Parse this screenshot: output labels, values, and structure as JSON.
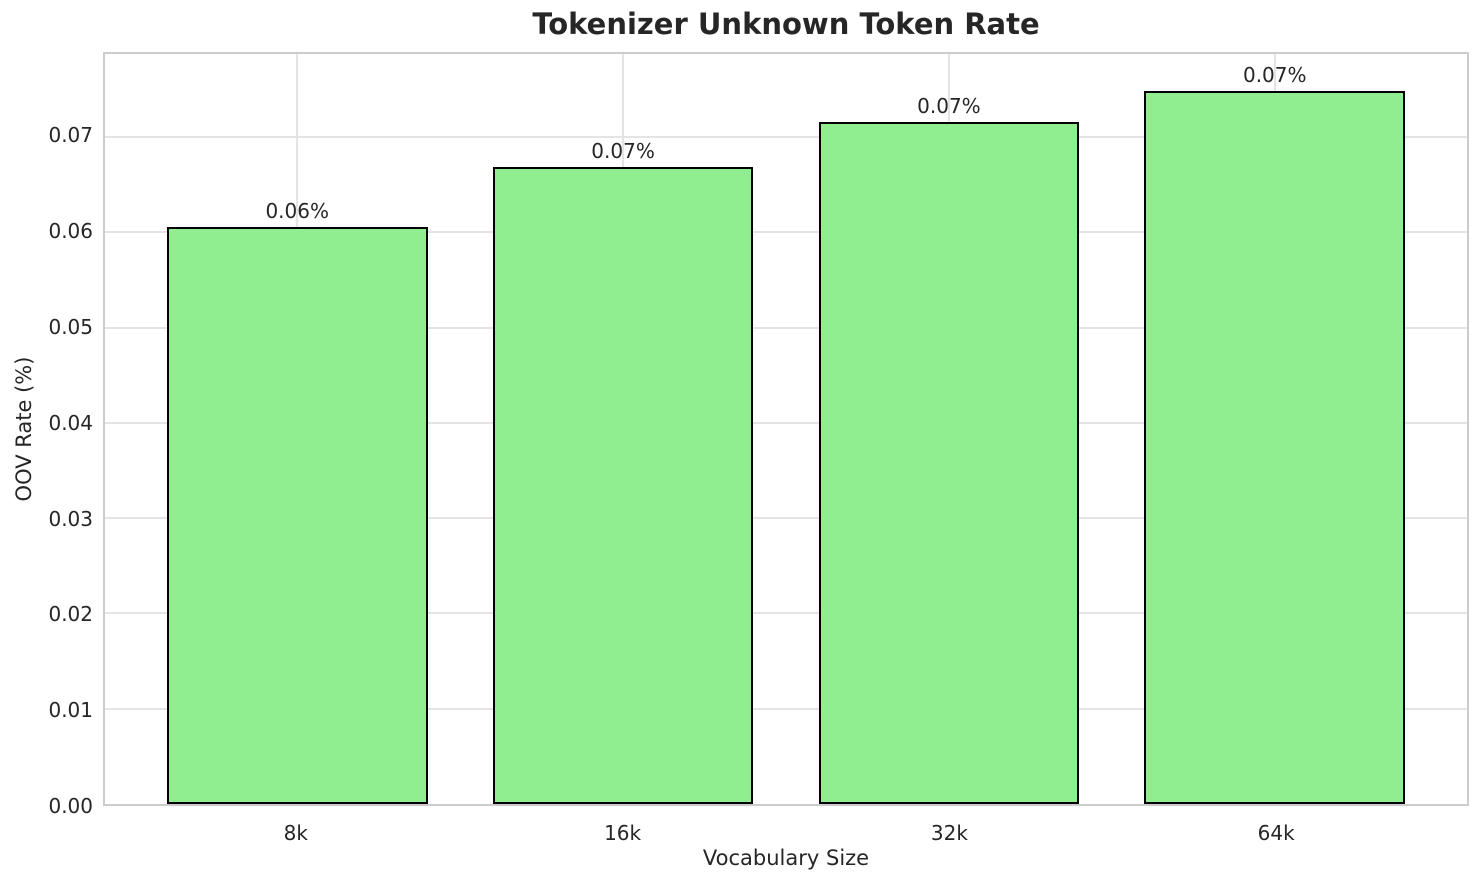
{
  "chart_data": {
    "type": "bar",
    "title": "Tokenizer Unknown Token Rate",
    "xlabel": "Vocabulary Size",
    "ylabel": "OOV Rate (%)",
    "categories": [
      "8k",
      "16k",
      "32k",
      "64k"
    ],
    "values": [
      0.0605,
      0.0668,
      0.0716,
      0.0748
    ],
    "bar_labels": [
      "0.06%",
      "0.07%",
      "0.07%",
      "0.07%"
    ],
    "ylim": [
      0,
      0.0787
    ],
    "yticks": [
      {
        "value": 0.0,
        "label": "0.00"
      },
      {
        "value": 0.01,
        "label": "0.01"
      },
      {
        "value": 0.02,
        "label": "0.02"
      },
      {
        "value": 0.03,
        "label": "0.03"
      },
      {
        "value": 0.04,
        "label": "0.04"
      },
      {
        "value": 0.05,
        "label": "0.05"
      },
      {
        "value": 0.06,
        "label": "0.06"
      },
      {
        "value": 0.07,
        "label": "0.07"
      }
    ],
    "bar_width_data_units": 0.8,
    "x_margin_fraction": 0.05,
    "grid": true,
    "legend_position": "none",
    "colors": {
      "bar_fill": "#90ee90",
      "bar_edge": "#000000",
      "grid_line": "#e4e4e4",
      "axis_border": "#cccccc",
      "text": "#262626",
      "background": "#ffffff"
    }
  }
}
